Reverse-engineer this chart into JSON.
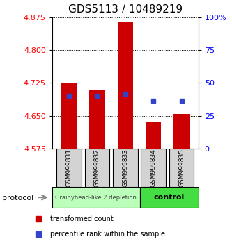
{
  "title": "GDS5113 / 10489219",
  "samples": [
    "GSM999831",
    "GSM999832",
    "GSM999833",
    "GSM999834",
    "GSM999835"
  ],
  "bar_bottom": 4.575,
  "bar_tops": [
    4.725,
    4.71,
    4.865,
    4.637,
    4.655
  ],
  "blue_dots_y": [
    4.695,
    4.695,
    4.7,
    4.685,
    4.685
  ],
  "ylim": [
    4.575,
    4.875
  ],
  "yticks_left": [
    4.575,
    4.65,
    4.725,
    4.8,
    4.875
  ],
  "ytick_right_labels": [
    "0",
    "25",
    "50",
    "75",
    "100%"
  ],
  "right_pcts": [
    0,
    25,
    50,
    75,
    100
  ],
  "bar_color": "#cc0000",
  "blue_color": "#3344cc",
  "group1_label": "Grainyhead-like 2 depletion",
  "group1_color": "#bbffbb",
  "group2_label": "control",
  "group2_color": "#44dd44",
  "protocol_label": "protocol",
  "title_fontsize": 11,
  "tick_fontsize": 8,
  "bar_width": 0.55,
  "legend_red_label": "transformed count",
  "legend_blue_label": "percentile rank within the sample"
}
